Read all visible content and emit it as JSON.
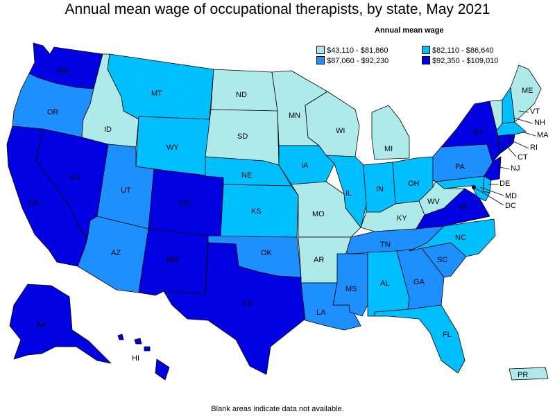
{
  "title": "Annual mean wage of occupational therapists, by state, May 2021",
  "legend": {
    "title": "Annual mean wage",
    "ranges": [
      {
        "label": "$43,110 - $81,860",
        "color": "#aeeaea"
      },
      {
        "label": "$82,110 - $86,640",
        "color": "#00bfff"
      },
      {
        "label": "$87,060 - $92,230",
        "color": "#1e8fff"
      },
      {
        "label": "$92,350 - $109,010",
        "color": "#0000e0"
      }
    ]
  },
  "footnote": "Blank areas indicate data not available.",
  "states": {
    "WA": "WA",
    "OR": "OR",
    "CA": "CA",
    "NV": "NV",
    "ID": "ID",
    "MT": "MT",
    "WY": "WY",
    "UT": "UT",
    "AZ": "AZ",
    "CO": "CO",
    "NM": "NM",
    "ND": "ND",
    "SD": "SD",
    "NE": "NE",
    "KS": "KS",
    "OK": "OK",
    "TX": "TX",
    "MN": "MN",
    "IA": "IA",
    "MO": "MO",
    "AR": "AR",
    "LA": "LA",
    "WI": "WI",
    "IL": "IL",
    "MI": "MI",
    "IN": "IN",
    "OH": "OH",
    "KY": "KY",
    "TN": "TN",
    "MS": "MS",
    "AL": "AL",
    "GA": "GA",
    "FL": "FL",
    "SC": "SC",
    "NC": "NC",
    "VA": "VA",
    "WV": "WV",
    "PA": "PA",
    "NY": "NY",
    "ME": "ME",
    "VT": "VT",
    "NH": "NH",
    "MA": "MA",
    "RI": "RI",
    "CT": "CT",
    "NJ": "NJ",
    "DE": "DE",
    "MD": "MD",
    "DC": "DC",
    "AK": "AK",
    "HI": "HI",
    "PR": "PR"
  }
}
